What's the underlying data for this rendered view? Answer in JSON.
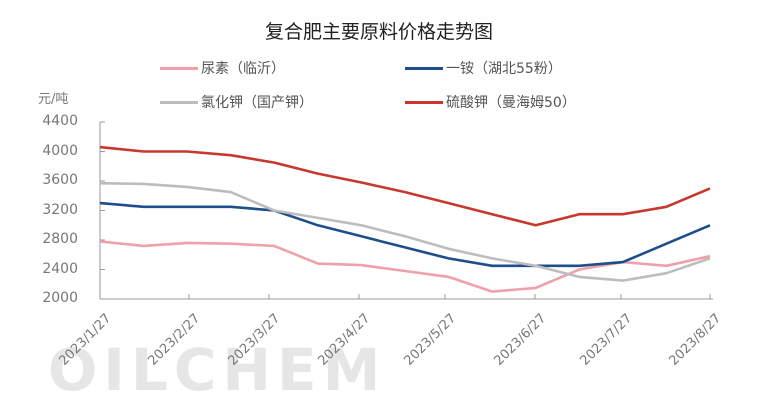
{
  "chart_data": {
    "type": "line",
    "title": "复合肥主要原料价格走势图",
    "ylabel": "元/吨",
    "xlabel": "",
    "ylim": [
      2000,
      4400
    ],
    "yticks": [
      2000,
      2400,
      2800,
      3200,
      3600,
      4000,
      4400
    ],
    "xticks": [
      "2023/1/27",
      "2023/2/27",
      "2023/3/27",
      "2023/4/27",
      "2023/5/27",
      "2023/6/27",
      "2023/7/27",
      "2023/8/27"
    ],
    "grid": false,
    "legend_position": "top",
    "x": [
      "2023/1/27",
      "2023/2/10",
      "2023/2/27",
      "2023/3/10",
      "2023/3/27",
      "2023/4/10",
      "2023/4/27",
      "2023/5/10",
      "2023/5/27",
      "2023/6/10",
      "2023/6/27",
      "2023/7/10",
      "2023/7/27",
      "2023/8/10",
      "2023/8/27"
    ],
    "series": [
      {
        "name": "尿素（临沂）",
        "color": "#f0a0aa",
        "values": [
          2780,
          2720,
          2760,
          2750,
          2720,
          2480,
          2460,
          2380,
          2300,
          2100,
          2150,
          2400,
          2500,
          2450,
          2580
        ]
      },
      {
        "name": "一铵（湖北55粉）",
        "color": "#1f4e8c",
        "values": [
          3300,
          3250,
          3250,
          3250,
          3200,
          3000,
          2850,
          2700,
          2550,
          2450,
          2450,
          2450,
          2500,
          2750,
          3000
        ]
      },
      {
        "name": "氯化钾（国产钾）",
        "color": "#bdbdbd",
        "values": [
          3570,
          3560,
          3520,
          3450,
          3200,
          3100,
          3000,
          2850,
          2680,
          2550,
          2450,
          2300,
          2250,
          2350,
          2550
        ]
      },
      {
        "name": "硫酸钾（曼海姆50）",
        "color": "#c8382e",
        "values": [
          4060,
          4000,
          4000,
          3950,
          3850,
          3700,
          3580,
          3450,
          3300,
          3150,
          3000,
          3150,
          3150,
          3250,
          3500
        ]
      }
    ]
  },
  "watermark": "OILCHEM"
}
